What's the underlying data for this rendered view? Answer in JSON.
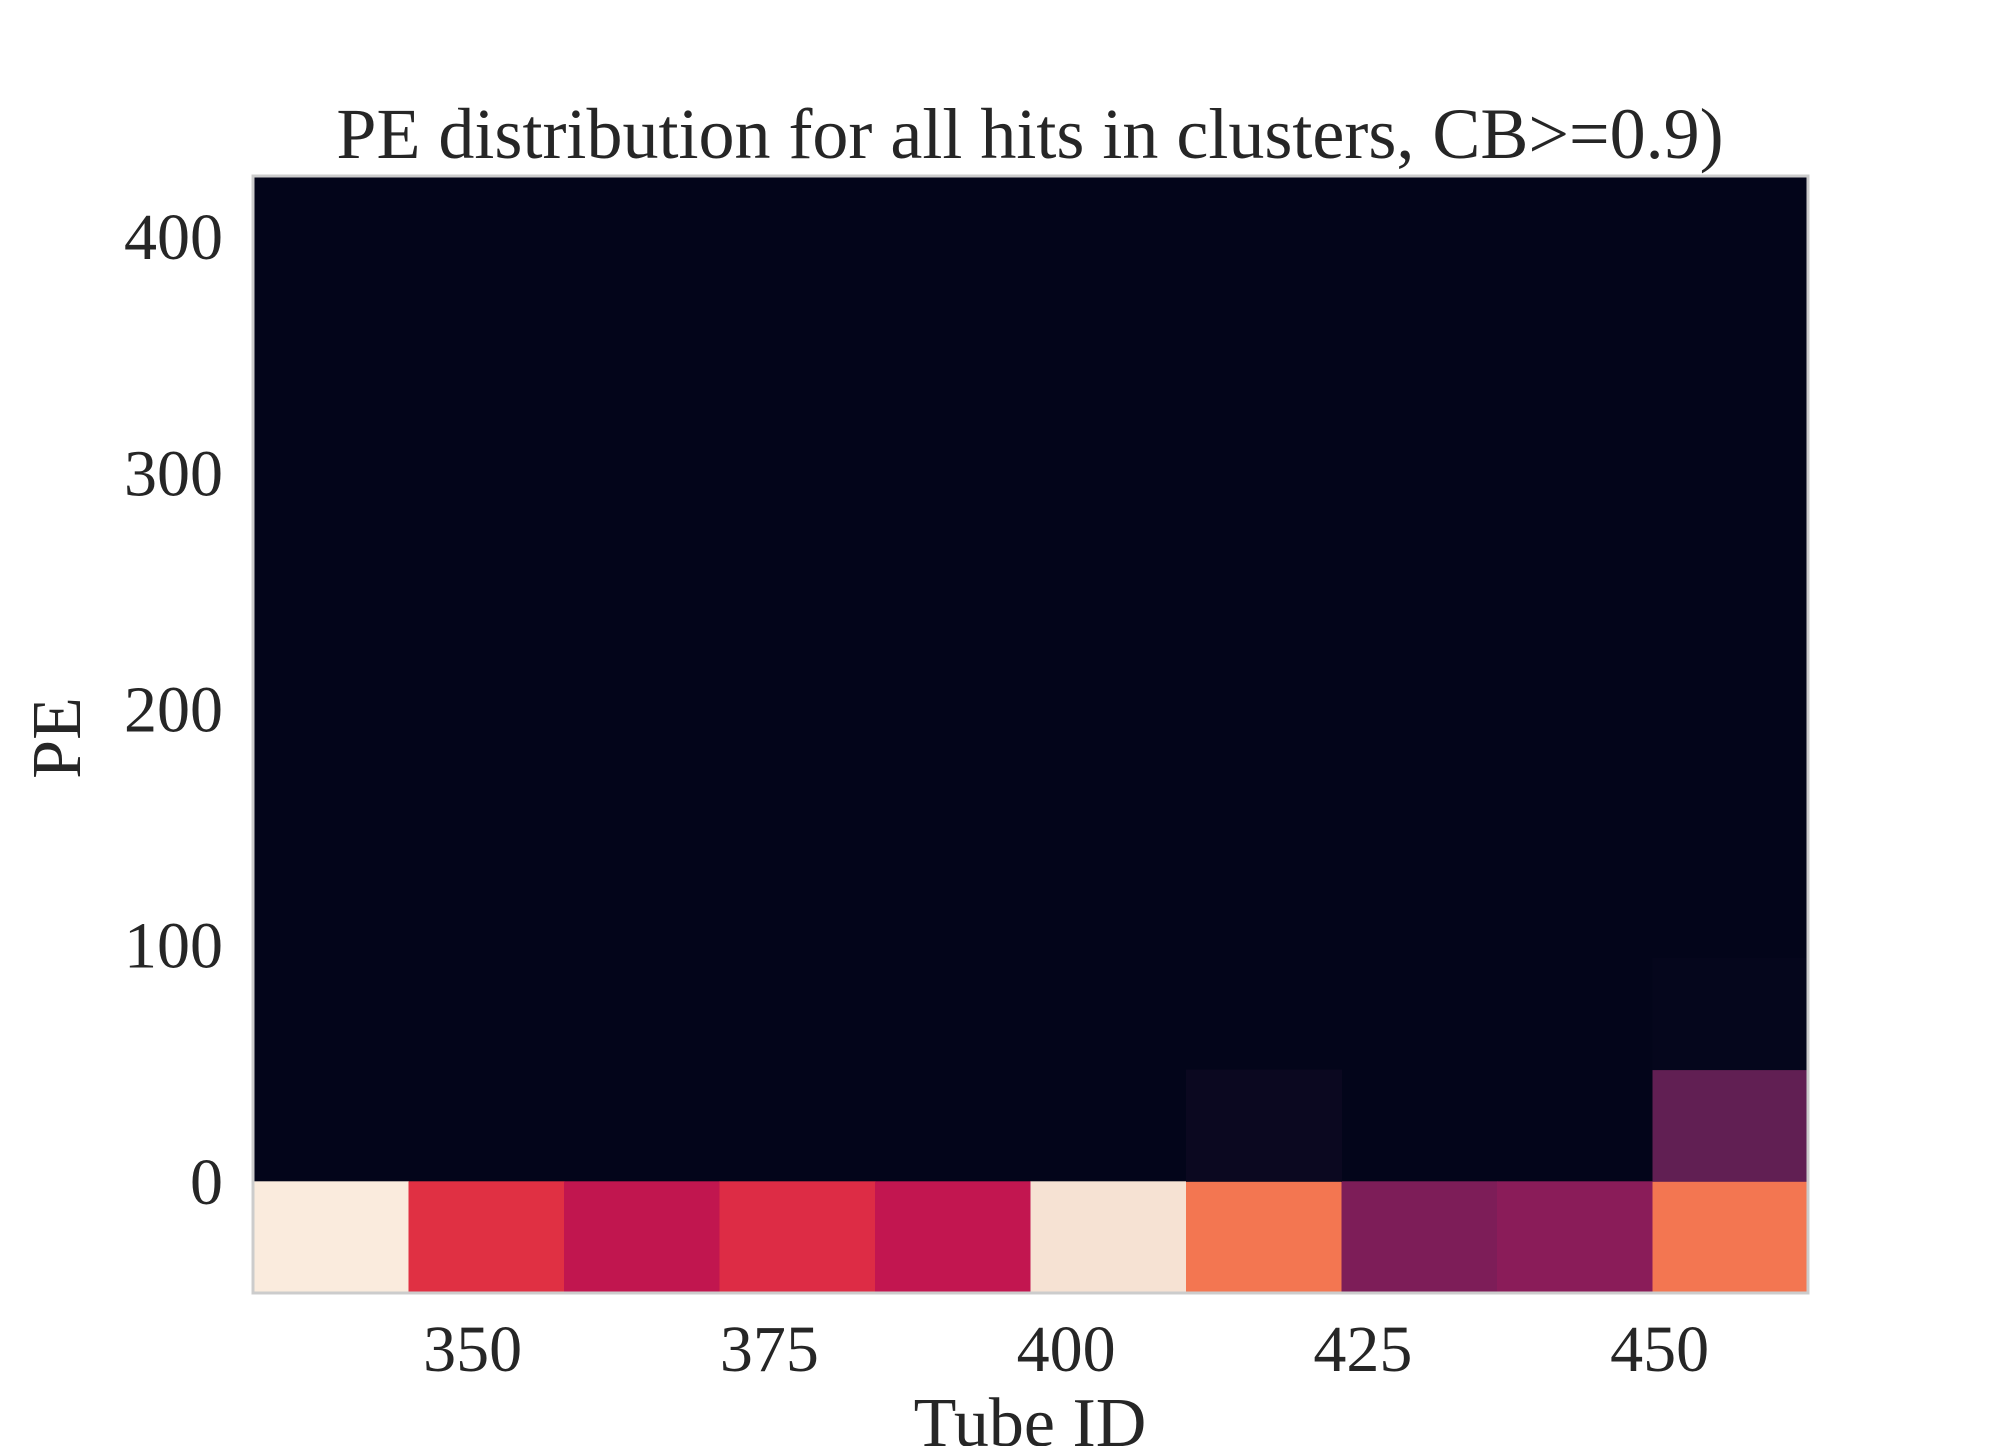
{
  "chart_data": {
    "type": "heatmap",
    "title": "PE distribution for all hits in clusters, CB>=0.9)",
    "xlabel": "Tube ID",
    "ylabel": "PE",
    "xlim": [
      331.5,
      462.5
    ],
    "ylim": [
      -47.5,
      425.5
    ],
    "x_ticks": [
      "350",
      "375",
      "400",
      "425",
      "450"
    ],
    "y_ticks": [
      "0",
      "100",
      "200",
      "300",
      "400"
    ],
    "grid": false,
    "x_bin_edges": [
      331.5,
      344.6,
      357.7,
      370.8,
      383.9,
      397.0,
      410.1,
      423.2,
      436.3,
      449.4,
      462.5
    ],
    "y_bin_edges": [
      -47.5,
      -0.2,
      47.1,
      94.4,
      141.7,
      189.0,
      236.3,
      283.6,
      330.9,
      378.2,
      425.5
    ],
    "colors": {
      "background": "#03051a",
      "frame": "#cccccc",
      "text": "#262626"
    },
    "cells": [
      {
        "col": 0,
        "row": 0,
        "color": "#faebdd"
      },
      {
        "col": 1,
        "row": 0,
        "color": "#e03043"
      },
      {
        "col": 2,
        "row": 0,
        "color": "#c1164f"
      },
      {
        "col": 3,
        "row": 0,
        "color": "#dd2c45"
      },
      {
        "col": 4,
        "row": 0,
        "color": "#c21650"
      },
      {
        "col": 5,
        "row": 0,
        "color": "#f6e2d3"
      },
      {
        "col": 6,
        "row": 0,
        "color": "#f37651"
      },
      {
        "col": 7,
        "row": 0,
        "color": "#7d1d58"
      },
      {
        "col": 8,
        "row": 0,
        "color": "#8a1c59"
      },
      {
        "col": 9,
        "row": 0,
        "color": "#f37651"
      },
      {
        "col": 6,
        "row": 1,
        "color": "#0b0820"
      },
      {
        "col": 9,
        "row": 1,
        "color": "#611f53"
      },
      {
        "col": 9,
        "row": 2,
        "color": "#05061c"
      }
    ]
  }
}
